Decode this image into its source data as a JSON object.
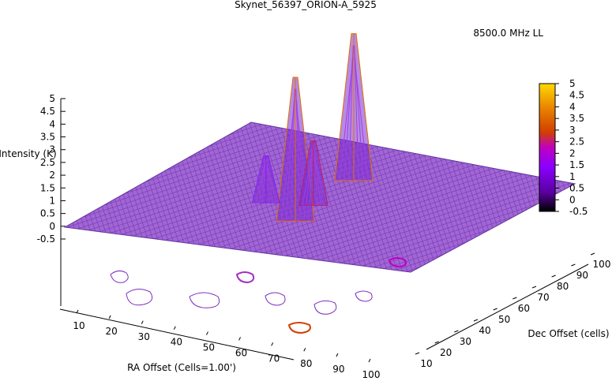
{
  "chart_data": {
    "type": "surface",
    "title": "Skynet_56397_ORION-A_5925",
    "xlabel": "RA Offset (Cells=1.00')",
    "ylabel": "Dec Offset (cells)",
    "zlabel": "Intensity (K)",
    "x_ticks": [
      "10",
      "20",
      "30",
      "40",
      "50",
      "60",
      "70",
      "80",
      "90",
      "100"
    ],
    "y_ticks": [
      "10",
      "20",
      "30",
      "40",
      "50",
      "60",
      "70",
      "80",
      "90",
      "100"
    ],
    "z_ticks": [
      "5",
      "4.5",
      "4",
      "3.5",
      "3",
      "2.5",
      "2",
      "1.5",
      "1",
      "0.5",
      "0",
      "-0.5"
    ],
    "z_range": [
      -0.5,
      5
    ],
    "colorbar_ticks": [
      "5",
      "4.5",
      "4",
      "3.5",
      "3",
      "2.5",
      "2",
      "1.5",
      "1",
      "0.5",
      "0",
      "-0.5"
    ],
    "colorbar_colors": [
      "#000000",
      "#5a00a0",
      "#8a00ff",
      "#c000c0",
      "#d04000",
      "#e88000",
      "#ffd800"
    ],
    "series": [
      {
        "name": "8500.0 MHz LL",
        "color_start": "#7b2cbf",
        "color_end": "#e8a000"
      }
    ],
    "peaks": [
      {
        "ra": 50,
        "dec": 30,
        "intensity": 4.9
      },
      {
        "ra": 47,
        "dec": 45,
        "intensity": 2.2
      },
      {
        "ra": 35,
        "dec": 42,
        "intensity": 1.6
      },
      {
        "ra": 45,
        "dec": 70,
        "intensity": 5.0
      }
    ]
  }
}
